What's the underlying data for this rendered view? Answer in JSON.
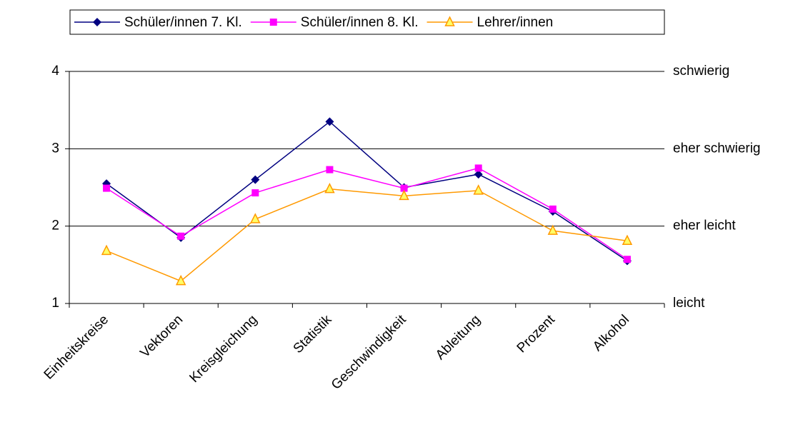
{
  "chart_data": {
    "type": "line",
    "categories": [
      "Einheitskreise",
      "Vektoren",
      "Kreisgleichung",
      "Statistik",
      "Geschwindigkeit",
      "Ableitung",
      "Prozent",
      "Alkohol"
    ],
    "series": [
      {
        "name": "Schüler/innen 7. Kl.",
        "color": "#000080",
        "marker": "diamond",
        "values": [
          2.55,
          1.85,
          2.6,
          3.35,
          2.5,
          2.67,
          2.19,
          1.55
        ]
      },
      {
        "name": "Schüler/innen 8. Kl.",
        "color": "#ff00ff",
        "marker": "square",
        "values": [
          2.49,
          1.87,
          2.43,
          2.73,
          2.49,
          2.75,
          2.22,
          1.57
        ]
      },
      {
        "name": "Lehrer/innen",
        "color": "#ff9900",
        "marker": "triangle",
        "values": [
          1.68,
          1.29,
          2.09,
          2.48,
          2.39,
          2.46,
          1.94,
          1.81
        ]
      }
    ],
    "ylim": [
      1,
      4
    ],
    "yticks": [
      1,
      2,
      3,
      4
    ],
    "y2lim": [
      1,
      4
    ],
    "y2ticks": [
      {
        "value": 1,
        "label": "leicht"
      },
      {
        "value": 2,
        "label": "eher leicht"
      },
      {
        "value": 3,
        "label": "eher schwierig"
      },
      {
        "value": 4,
        "label": "schwierig"
      }
    ],
    "grid": true,
    "legend": "top"
  }
}
